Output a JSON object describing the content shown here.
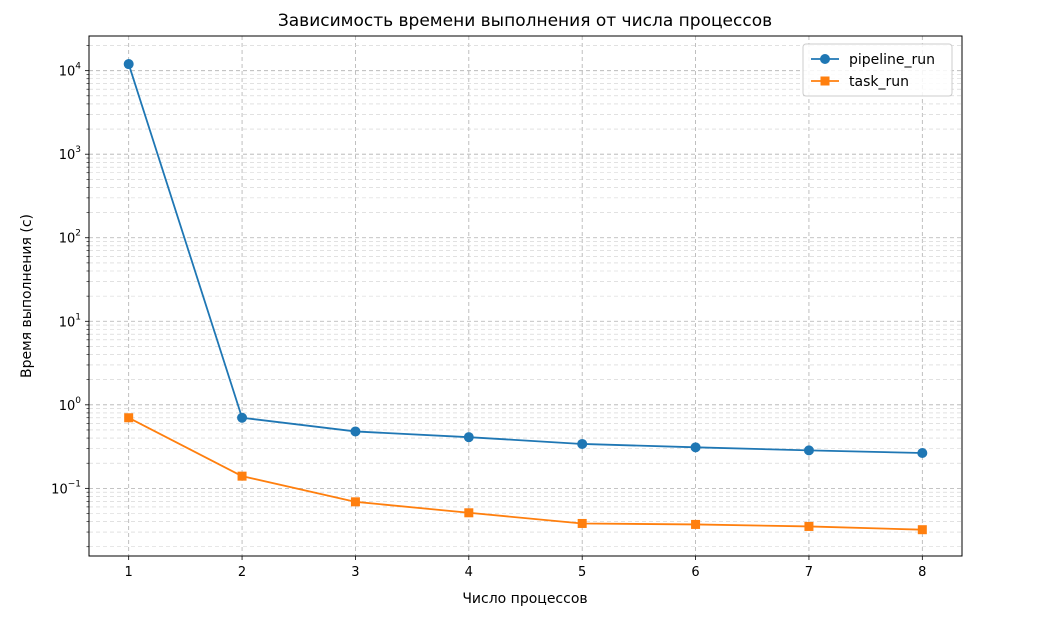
{
  "chart_data": {
    "type": "line",
    "title": "Зависимость времени выполнения от числа процессов",
    "xlabel": "Число процессов",
    "ylabel": "Время выполнения (с)",
    "x": [
      1,
      2,
      3,
      4,
      5,
      6,
      7,
      8
    ],
    "x_ticks": [
      "1",
      "2",
      "3",
      "4",
      "5",
      "6",
      "7",
      "8"
    ],
    "y_scale": "log",
    "y_ticks": [
      {
        "base": "10",
        "exp": "−1",
        "value": 0.1
      },
      {
        "base": "10",
        "exp": "0",
        "value": 1
      },
      {
        "base": "10",
        "exp": "1",
        "value": 10
      },
      {
        "base": "10",
        "exp": "2",
        "value": 100
      },
      {
        "base": "10",
        "exp": "3",
        "value": 1000
      },
      {
        "base": "10",
        "exp": "4",
        "value": 10000
      }
    ],
    "xlim": [
      0.65,
      8.35
    ],
    "ylim": [
      0.0155,
      26000
    ],
    "grid": true,
    "legend_position": "top-right",
    "series": [
      {
        "name": "pipeline_run",
        "color": "#1f77b4",
        "marker": "circle",
        "values": [
          12000,
          0.7,
          0.48,
          0.41,
          0.34,
          0.31,
          0.285,
          0.265
        ]
      },
      {
        "name": "task_run",
        "color": "#ff7f0e",
        "marker": "square",
        "values": [
          0.7,
          0.14,
          0.069,
          0.051,
          0.038,
          0.037,
          0.035,
          0.032
        ]
      }
    ]
  }
}
